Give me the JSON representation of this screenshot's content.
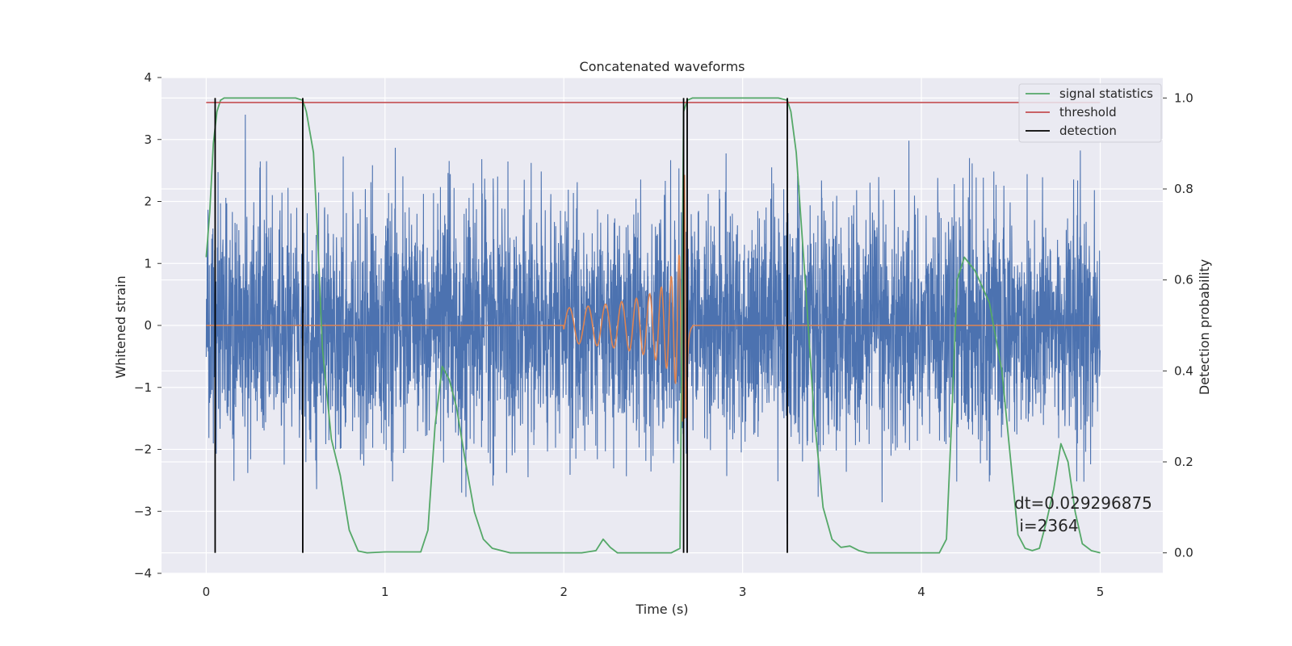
{
  "chart_data": {
    "type": "line",
    "title": "Concatenated waveforms",
    "xlabel": "Time (s)",
    "ylabel": "Whitened strain",
    "ylabel_right": "Detection probability",
    "xlim": [
      -0.25,
      5.35
    ],
    "ylim": [
      -4.0,
      4.0
    ],
    "ylim_right": [
      -0.045,
      1.045
    ],
    "xticks": [
      0,
      1,
      2,
      3,
      4,
      5
    ],
    "yticks": [
      -4,
      -3,
      -2,
      -1,
      0,
      1,
      2,
      3,
      4
    ],
    "yticks_right": [
      0.0,
      0.2,
      0.4,
      0.6,
      0.8,
      1.0
    ],
    "xtick_labels": [
      "0",
      "1",
      "2",
      "3",
      "4",
      "5"
    ],
    "ytick_labels": [
      "−4",
      "−3",
      "−2",
      "−1",
      "0",
      "1",
      "2",
      "3",
      "4"
    ],
    "ytick_right_labels": [
      "0.0",
      "0.2",
      "0.4",
      "0.6",
      "0.8",
      "1.0"
    ],
    "grid": true,
    "legend": {
      "placement": "upper-right",
      "entries": [
        {
          "label": "signal statistics",
          "color": "#55a868"
        },
        {
          "label": "threshold",
          "color": "#c44e52"
        },
        {
          "label": "detection",
          "color": "#000000"
        }
      ]
    },
    "colors": {
      "strain": "#4c72b0",
      "template": "#dd8452",
      "signal_statistics": "#55a868",
      "threshold": "#c44e52",
      "detection": "#000000",
      "plot_background": "#eaeaf2",
      "grid": "#ffffff"
    },
    "noise_strain": {
      "x_range": [
        0,
        5
      ],
      "amplitude_envelope": [
        -3.2,
        3.4
      ]
    },
    "template_waveform": {
      "x_start": 2.0,
      "x_end": 2.72,
      "peak_x": 2.68,
      "peak_amplitude": 2.8
    },
    "threshold": {
      "x_range": [
        0,
        5
      ],
      "value": 0.99
    },
    "detections": [
      0.05,
      0.54,
      2.67,
      2.69,
      3.25
    ],
    "signal_statistics": {
      "axis": "right",
      "x": [
        0,
        0.02,
        0.04,
        0.06,
        0.08,
        0.1,
        0.5,
        0.54,
        0.56,
        0.6,
        0.62,
        0.65,
        0.7,
        0.75,
        0.8,
        0.85,
        0.9,
        1.0,
        1.2,
        1.24,
        1.28,
        1.32,
        1.36,
        1.4,
        1.45,
        1.5,
        1.55,
        1.6,
        1.7,
        2.0,
        2.1,
        2.18,
        2.22,
        2.26,
        2.3,
        2.5,
        2.6,
        2.65,
        2.67,
        2.69,
        2.72,
        2.75,
        3.2,
        3.25,
        3.27,
        3.3,
        3.35,
        3.4,
        3.45,
        3.5,
        3.55,
        3.6,
        3.65,
        3.7,
        4.1,
        4.14,
        4.17,
        4.2,
        4.24,
        4.3,
        4.38,
        4.45,
        4.5,
        4.54,
        4.58,
        4.62,
        4.66,
        4.7,
        4.74,
        4.78,
        4.82,
        4.86,
        4.9,
        4.95,
        5.0
      ],
      "values": [
        0.65,
        0.75,
        0.9,
        0.97,
        0.995,
        1.0,
        1.0,
        0.995,
        0.97,
        0.88,
        0.72,
        0.45,
        0.25,
        0.17,
        0.05,
        0.004,
        0.0,
        0.002,
        0.002,
        0.05,
        0.28,
        0.41,
        0.38,
        0.32,
        0.2,
        0.09,
        0.03,
        0.01,
        0.0,
        0.0,
        0.0,
        0.005,
        0.03,
        0.012,
        0.0,
        0.0,
        0.0,
        0.01,
        0.97,
        0.995,
        1.0,
        1.0,
        1.0,
        0.995,
        0.97,
        0.88,
        0.6,
        0.3,
        0.1,
        0.03,
        0.012,
        0.015,
        0.005,
        0.0,
        0.0,
        0.03,
        0.3,
        0.6,
        0.65,
        0.62,
        0.55,
        0.4,
        0.2,
        0.04,
        0.01,
        0.005,
        0.01,
        0.07,
        0.14,
        0.24,
        0.2,
        0.09,
        0.02,
        0.005,
        0.0
      ]
    },
    "annotation": {
      "line1": "dt=0.029296875",
      "line2": " i=2364",
      "x": 4.5,
      "y": -3.0
    }
  }
}
